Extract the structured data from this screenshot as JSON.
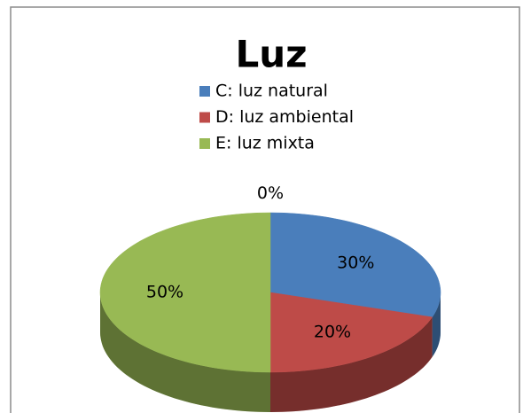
{
  "chart_data": {
    "type": "pie",
    "title": "Luz",
    "categories": [
      null,
      "C: luz natural",
      "D: luz ambiental",
      "E: luz mixta"
    ],
    "values": [
      0,
      30,
      20,
      50
    ],
    "value_labels": [
      "0%",
      "30%",
      "20%",
      "50%"
    ],
    "colors": [
      "#7f7f7f",
      "#4a7ebb",
      "#be4b48",
      "#98b954"
    ],
    "legend": "top"
  }
}
